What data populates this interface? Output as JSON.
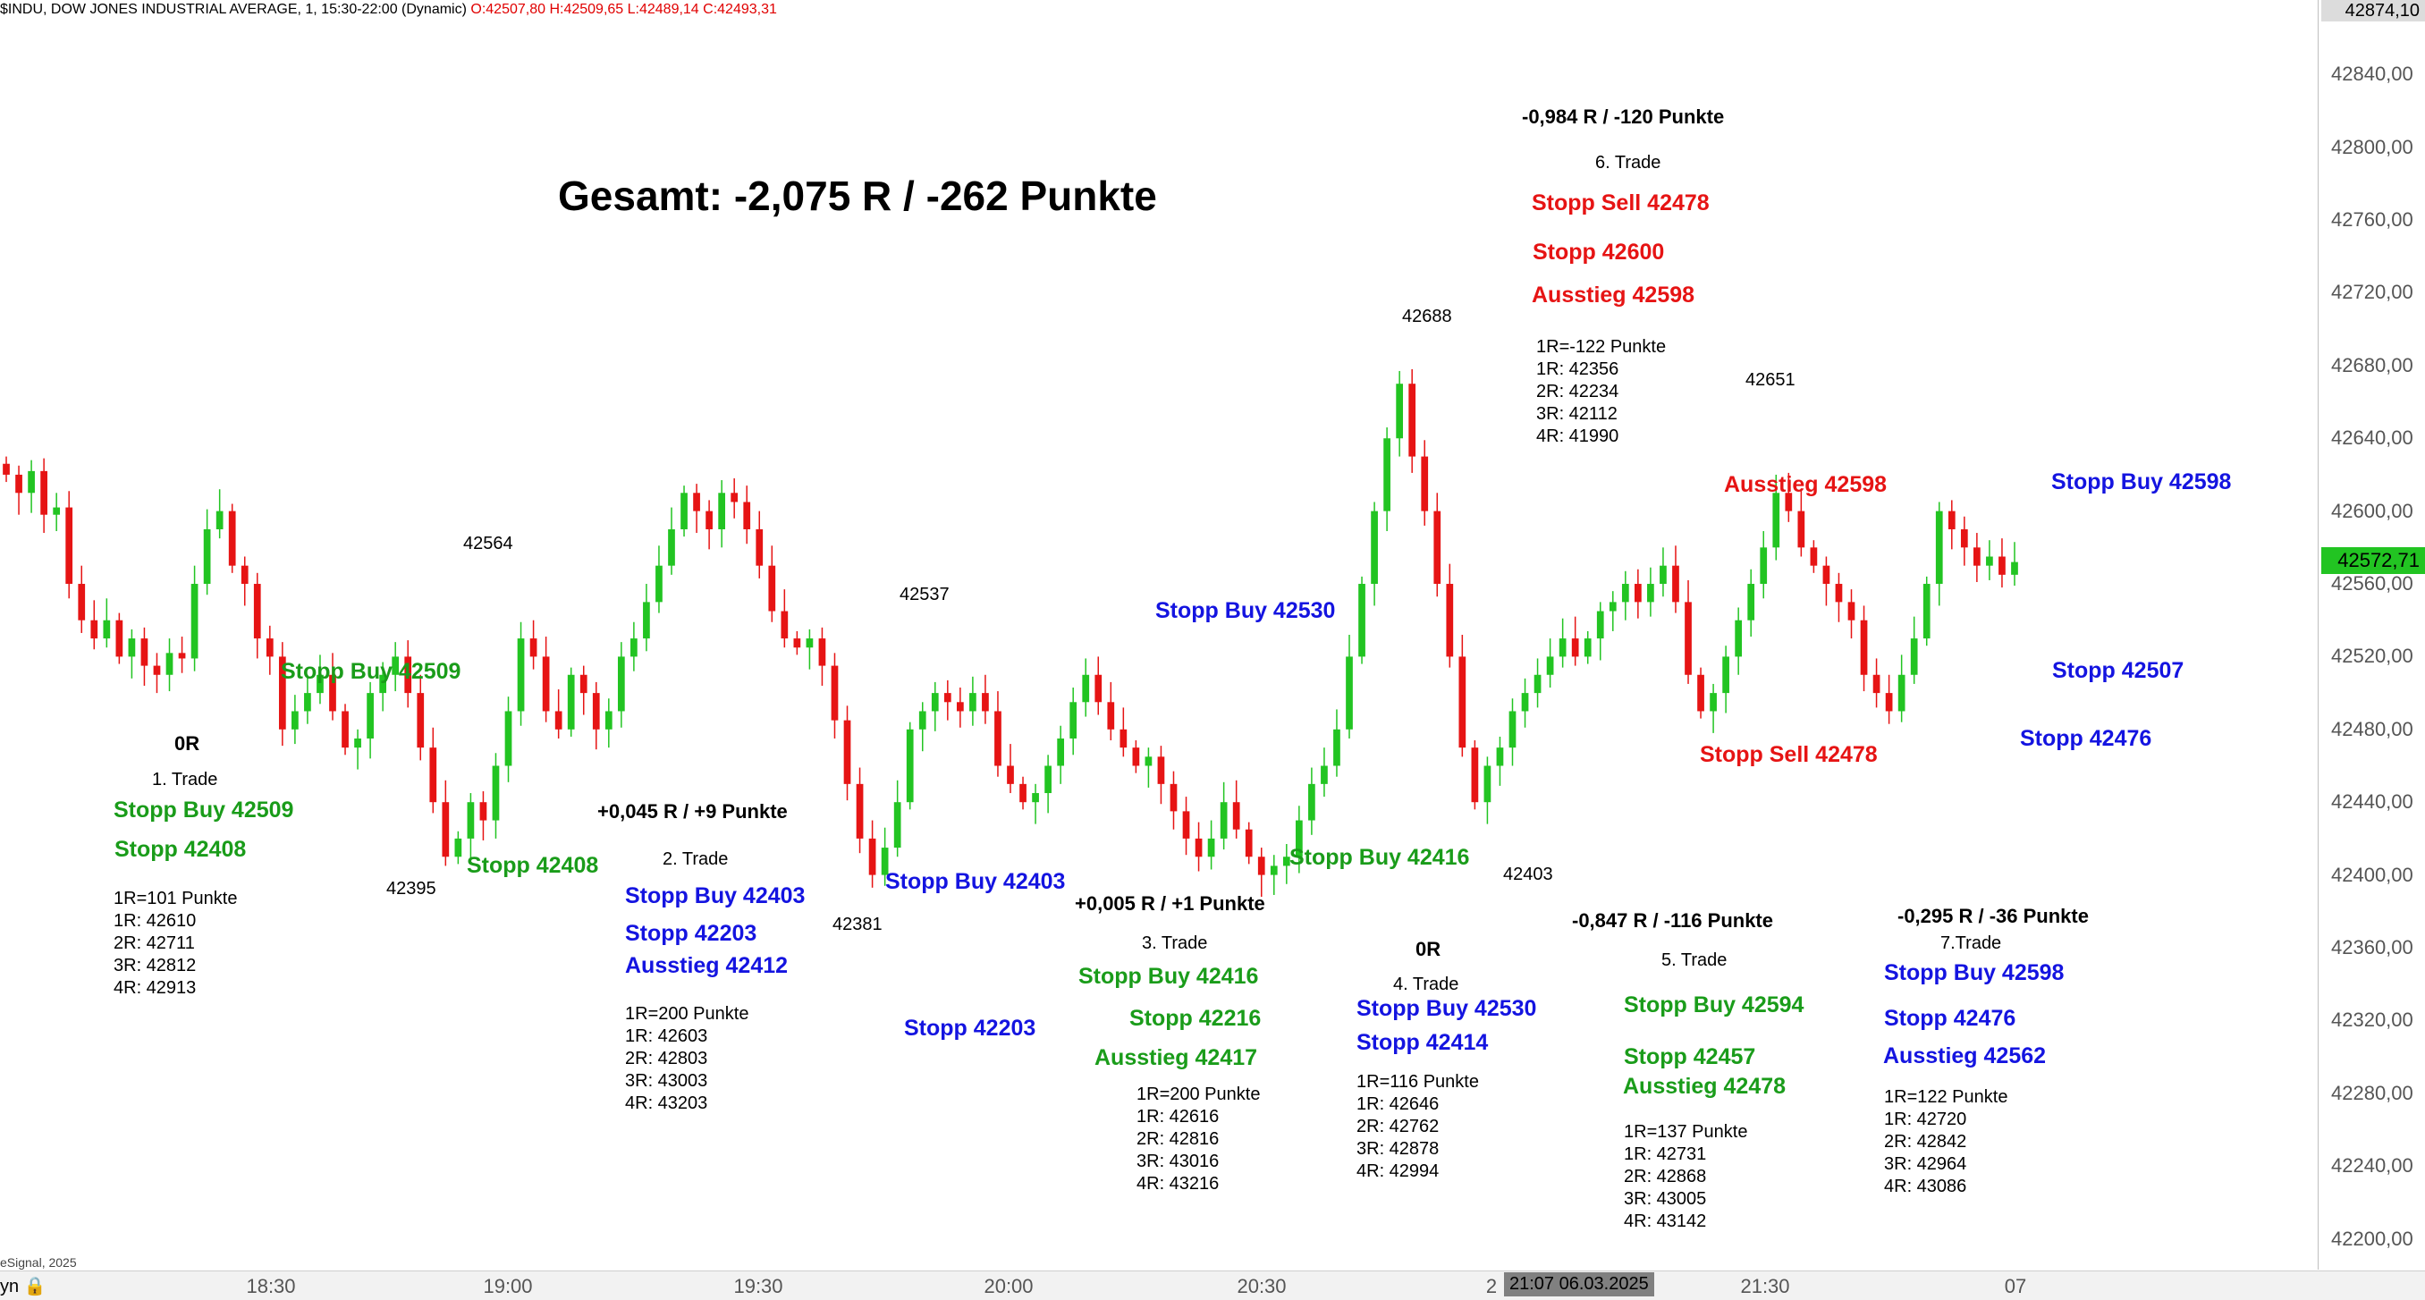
{
  "header": {
    "symbol": "$INDU, DOW JONES INDUSTRIAL AVERAGE, 1, 15:30-22:00 (Dynamic)",
    "ohlc": "O:42507,80 H:42509,65 L:42489,14 C:42493,31"
  },
  "copyright": "eSignal, 2025",
  "bottom_left": "yn 🔒",
  "top_price_label": "42874,10",
  "current_price_label": "42572,71",
  "date_label": "21:07 06.03.2025",
  "colors": {
    "up": "#22c422",
    "down": "#e61414",
    "buy_green": "#1a9c1a",
    "sell_red": "#e61414",
    "blue": "#1414e0"
  },
  "chart_data": {
    "type": "candlestick",
    "title": "Gesamt: -2,075 R / -262 Punkte",
    "y_ticks": [
      "42840,00",
      "42800,00",
      "42760,00",
      "42720,00",
      "42680,00",
      "42640,00",
      "42600,00",
      "42560,00",
      "42520,00",
      "42480,00",
      "42440,00",
      "42400,00",
      "42360,00",
      "42320,00",
      "42280,00",
      "42240,00",
      "42200,00"
    ],
    "ylim": [
      42187,
      42877
    ],
    "x_ticks": [
      "18:30",
      "19:00",
      "19:30",
      "20:00",
      "20:30",
      "2",
      "21:30",
      "07"
    ],
    "close_series": [
      42620,
      42610,
      42622,
      42598,
      42602,
      42560,
      42540,
      42530,
      42540,
      42520,
      42530,
      42515,
      42510,
      42522,
      42519,
      42560,
      42590,
      42600,
      42570,
      42560,
      42530,
      42520,
      42480,
      42490,
      42500,
      42510,
      42490,
      42470,
      42475,
      42500,
      42510,
      42520,
      42500,
      42470,
      42440,
      42410,
      42420,
      42440,
      42430,
      42460,
      42490,
      42530,
      42520,
      42490,
      42480,
      42510,
      42500,
      42480,
      42490,
      42520,
      42530,
      42550,
      42570,
      42590,
      42610,
      42600,
      42590,
      42610,
      42605,
      42590,
      42570,
      42545,
      42530,
      42525,
      42530,
      42515,
      42485,
      42450,
      42420,
      42400,
      42415,
      42440,
      42480,
      42490,
      42500,
      42495,
      42490,
      42500,
      42490,
      42460,
      42450,
      42440,
      42445,
      42460,
      42475,
      42495,
      42510,
      42495,
      42480,
      42470,
      42460,
      42465,
      42450,
      42435,
      42420,
      42410,
      42420,
      42440,
      42425,
      42410,
      42400,
      42405,
      42410,
      42430,
      42450,
      42460,
      42480,
      42520,
      42560,
      42600,
      42640,
      42670,
      42630,
      42600,
      42560,
      42520,
      42470,
      42440,
      42460,
      42470,
      42490,
      42500,
      42510,
      42520,
      42530,
      42520,
      42530,
      42545,
      42550,
      42560,
      42550,
      42560,
      42570,
      42550,
      42510,
      42490,
      42500,
      42520,
      42540,
      42560,
      42580,
      42610,
      42600,
      42580,
      42570,
      42560,
      42550,
      42540,
      42510,
      42500,
      42490,
      42510,
      42530,
      42560,
      42600,
      42590,
      42580,
      42570,
      42575,
      42565,
      42572
    ],
    "annotations": [
      {
        "text": "Gesamt: -2,075 R / -262 Punkte"
      },
      {
        "text": "-0,984 R / -120 Punkte"
      },
      {
        "text": "6. Trade"
      },
      {
        "text": "Stopp Sell 42478"
      },
      {
        "text": "Stopp 42600"
      },
      {
        "text": "Ausstieg 42598"
      },
      {
        "text": "42688"
      },
      {
        "text": "42651"
      },
      {
        "text": "42564"
      },
      {
        "text": "42537"
      },
      {
        "text": "42395"
      },
      {
        "text": "42381"
      },
      {
        "text": "42403"
      }
    ]
  },
  "labels": {
    "title": "Gesamt: -2,075 R / -262 Punkte",
    "t6_result": "-0,984 R / -120 Punkte",
    "t6_name": "6. Trade",
    "t6_entry": "Stopp Sell 42478",
    "t6_stop": "Stopp 42600",
    "t6_exit": "Ausstieg 42598",
    "t6_list": [
      "1R=-122 Punkte",
      "1R: 42356",
      "2R: 42234",
      "3R: 42112",
      "4R: 41990"
    ],
    "peak_42688": "42688",
    "peak_42651": "42651",
    "peak_42564": "42564",
    "peak_42537": "42537",
    "low_42395": "42395",
    "low_42381": "42381",
    "low_42403": "42403",
    "t1_result": "0R",
    "t1_name": "1. Trade",
    "t1_entry": "Stopp Buy 42509",
    "t1_stop": "Stopp 42408",
    "t1_list": [
      "1R=101 Punkte",
      "1R: 42610",
      "2R: 42711",
      "3R: 42812",
      "4R: 42913"
    ],
    "t1_chart_entry": "Stopp Buy 42509",
    "t1_chart_stop": "Stopp 42408",
    "t2_result": "+0,045 R / +9 Punkte",
    "t2_name": "2. Trade",
    "t2_entry": "Stopp Buy 42403",
    "t2_stop": "Stopp 42203",
    "t2_exit": "Ausstieg 42412",
    "t2_list": [
      "1R=200 Punkte",
      "1R: 42603",
      "2R: 42803",
      "3R: 43003",
      "4R: 43203"
    ],
    "t2_chart_entry": "Stopp Buy 42403",
    "t2_chart_stop": "Stopp 42203",
    "t3_result": "+0,005 R / +1 Punkte",
    "t3_name": "3. Trade",
    "t3_entry": "Stopp Buy 42416",
    "t3_stop": "Stopp 42216",
    "t3_exit": "Ausstieg 42417",
    "t3_list": [
      "1R=200 Punkte",
      "1R: 42616",
      "2R: 42816",
      "3R: 43016",
      "4R: 43216"
    ],
    "t3_chart_entry": "Stopp Buy 42416",
    "t4_result": "0R",
    "t4_name": "4. Trade",
    "t4_entry": "Stopp Buy 42530",
    "t4_stop": "Stopp 42414",
    "t4_list": [
      "1R=116 Punkte",
      "1R: 42646",
      "2R: 42762",
      "3R: 42878",
      "4R: 42994"
    ],
    "t4_chart_entry": "Stopp Buy 42530",
    "t5_result": "-0,847 R / -116 Punkte",
    "t5_name": "5. Trade",
    "t5_entry": "Stopp Buy 42594",
    "t5_stop": "Stopp 42457",
    "t5_exit": "Ausstieg 42478",
    "t5_list": [
      "1R=137 Punkte",
      "1R: 42731",
      "2R: 42868",
      "3R: 43005",
      "4R: 43142"
    ],
    "t6_chart_exit": "Ausstieg 42598",
    "t6_chart_entry": "Stopp Sell 42478",
    "t7_result": "-0,295 R / -36 Punkte",
    "t7_name": "7.Trade",
    "t7_entry": "Stopp Buy 42598",
    "t7_stop": "Stopp 42476",
    "t7_exit": "Ausstieg 42562",
    "t7_list": [
      "1R=122 Punkte",
      "1R: 42720",
      "2R: 42842",
      "3R: 42964",
      "4R: 43086"
    ],
    "t7_chart_entry": "Stopp Buy 42598",
    "t7_chart_stop": "Stopp 42507",
    "t7_chart_stop2": "Stopp 42476"
  }
}
